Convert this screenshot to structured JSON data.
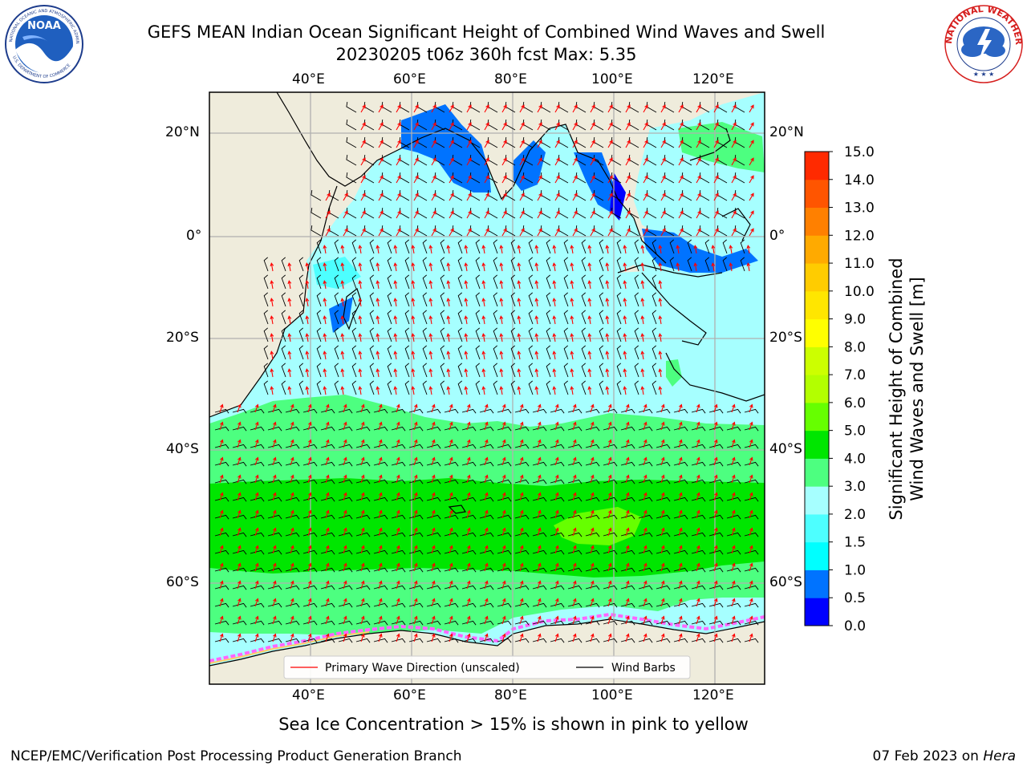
{
  "header": {
    "title_line1": "GEFS MEAN Indian Ocean Significant Height of Combined Wind Waves and Swell",
    "title_line2": "20230205 t06z 360h fcst   Max: 5.35"
  },
  "logos": {
    "left": {
      "name": "NOAA",
      "ring_text": "NATIONAL OCEANIC AND ATMOSPHERIC ADMINISTRATION",
      "bottom_text": "U.S. DEPARTMENT OF COMMERCE"
    },
    "right": {
      "ring_text": "NATIONAL WEATHER SERVICE"
    }
  },
  "map": {
    "lon_ticks": [
      "40°E",
      "60°E",
      "80°E",
      "100°E",
      "120°E"
    ],
    "lat_ticks": [
      "20°N",
      "0°",
      "20°S",
      "40°S",
      "60°S"
    ],
    "extent": {
      "lon": [
        20,
        130
      ],
      "lat": [
        -75,
        28
      ]
    },
    "colors": {
      "land": "#efecdc",
      "border": "#000000",
      "wave_arrow": "#ff0000",
      "wind_barb": "#000000",
      "grid": "#b0b0b0"
    }
  },
  "legend": {
    "wave_label": "Primary Wave Direction (unscaled)",
    "wind_label": "Wind Barbs"
  },
  "colorbar": {
    "label_line1": "Significant Height of Combined",
    "label_line2": "Wind Waves and Swell [m]",
    "ticks": [
      "0.0",
      "0.5",
      "1.0",
      "1.5",
      "2.0",
      "3.0",
      "4.0",
      "5.0",
      "6.0",
      "7.0",
      "8.0",
      "9.0",
      "10.0",
      "11.0",
      "12.0",
      "13.0",
      "14.0",
      "15.0"
    ],
    "colors": [
      "#0000ff",
      "#0073ff",
      "#00ffff",
      "#4dffff",
      "#a6ffff",
      "#4dff80",
      "#00e600",
      "#66ff00",
      "#b3ff00",
      "#ccff00",
      "#ffff00",
      "#ffe600",
      "#ffcc00",
      "#ffaa00",
      "#ff8000",
      "#ff5500",
      "#ff2a00"
    ]
  },
  "footer": {
    "note": "Sea Ice Concentration > 15% is shown in pink to yellow",
    "credit": "NCEP/EMC/Verification Post Processing Product Generation Branch",
    "date": "07 Feb 2023 on ",
    "host": "Hera"
  }
}
